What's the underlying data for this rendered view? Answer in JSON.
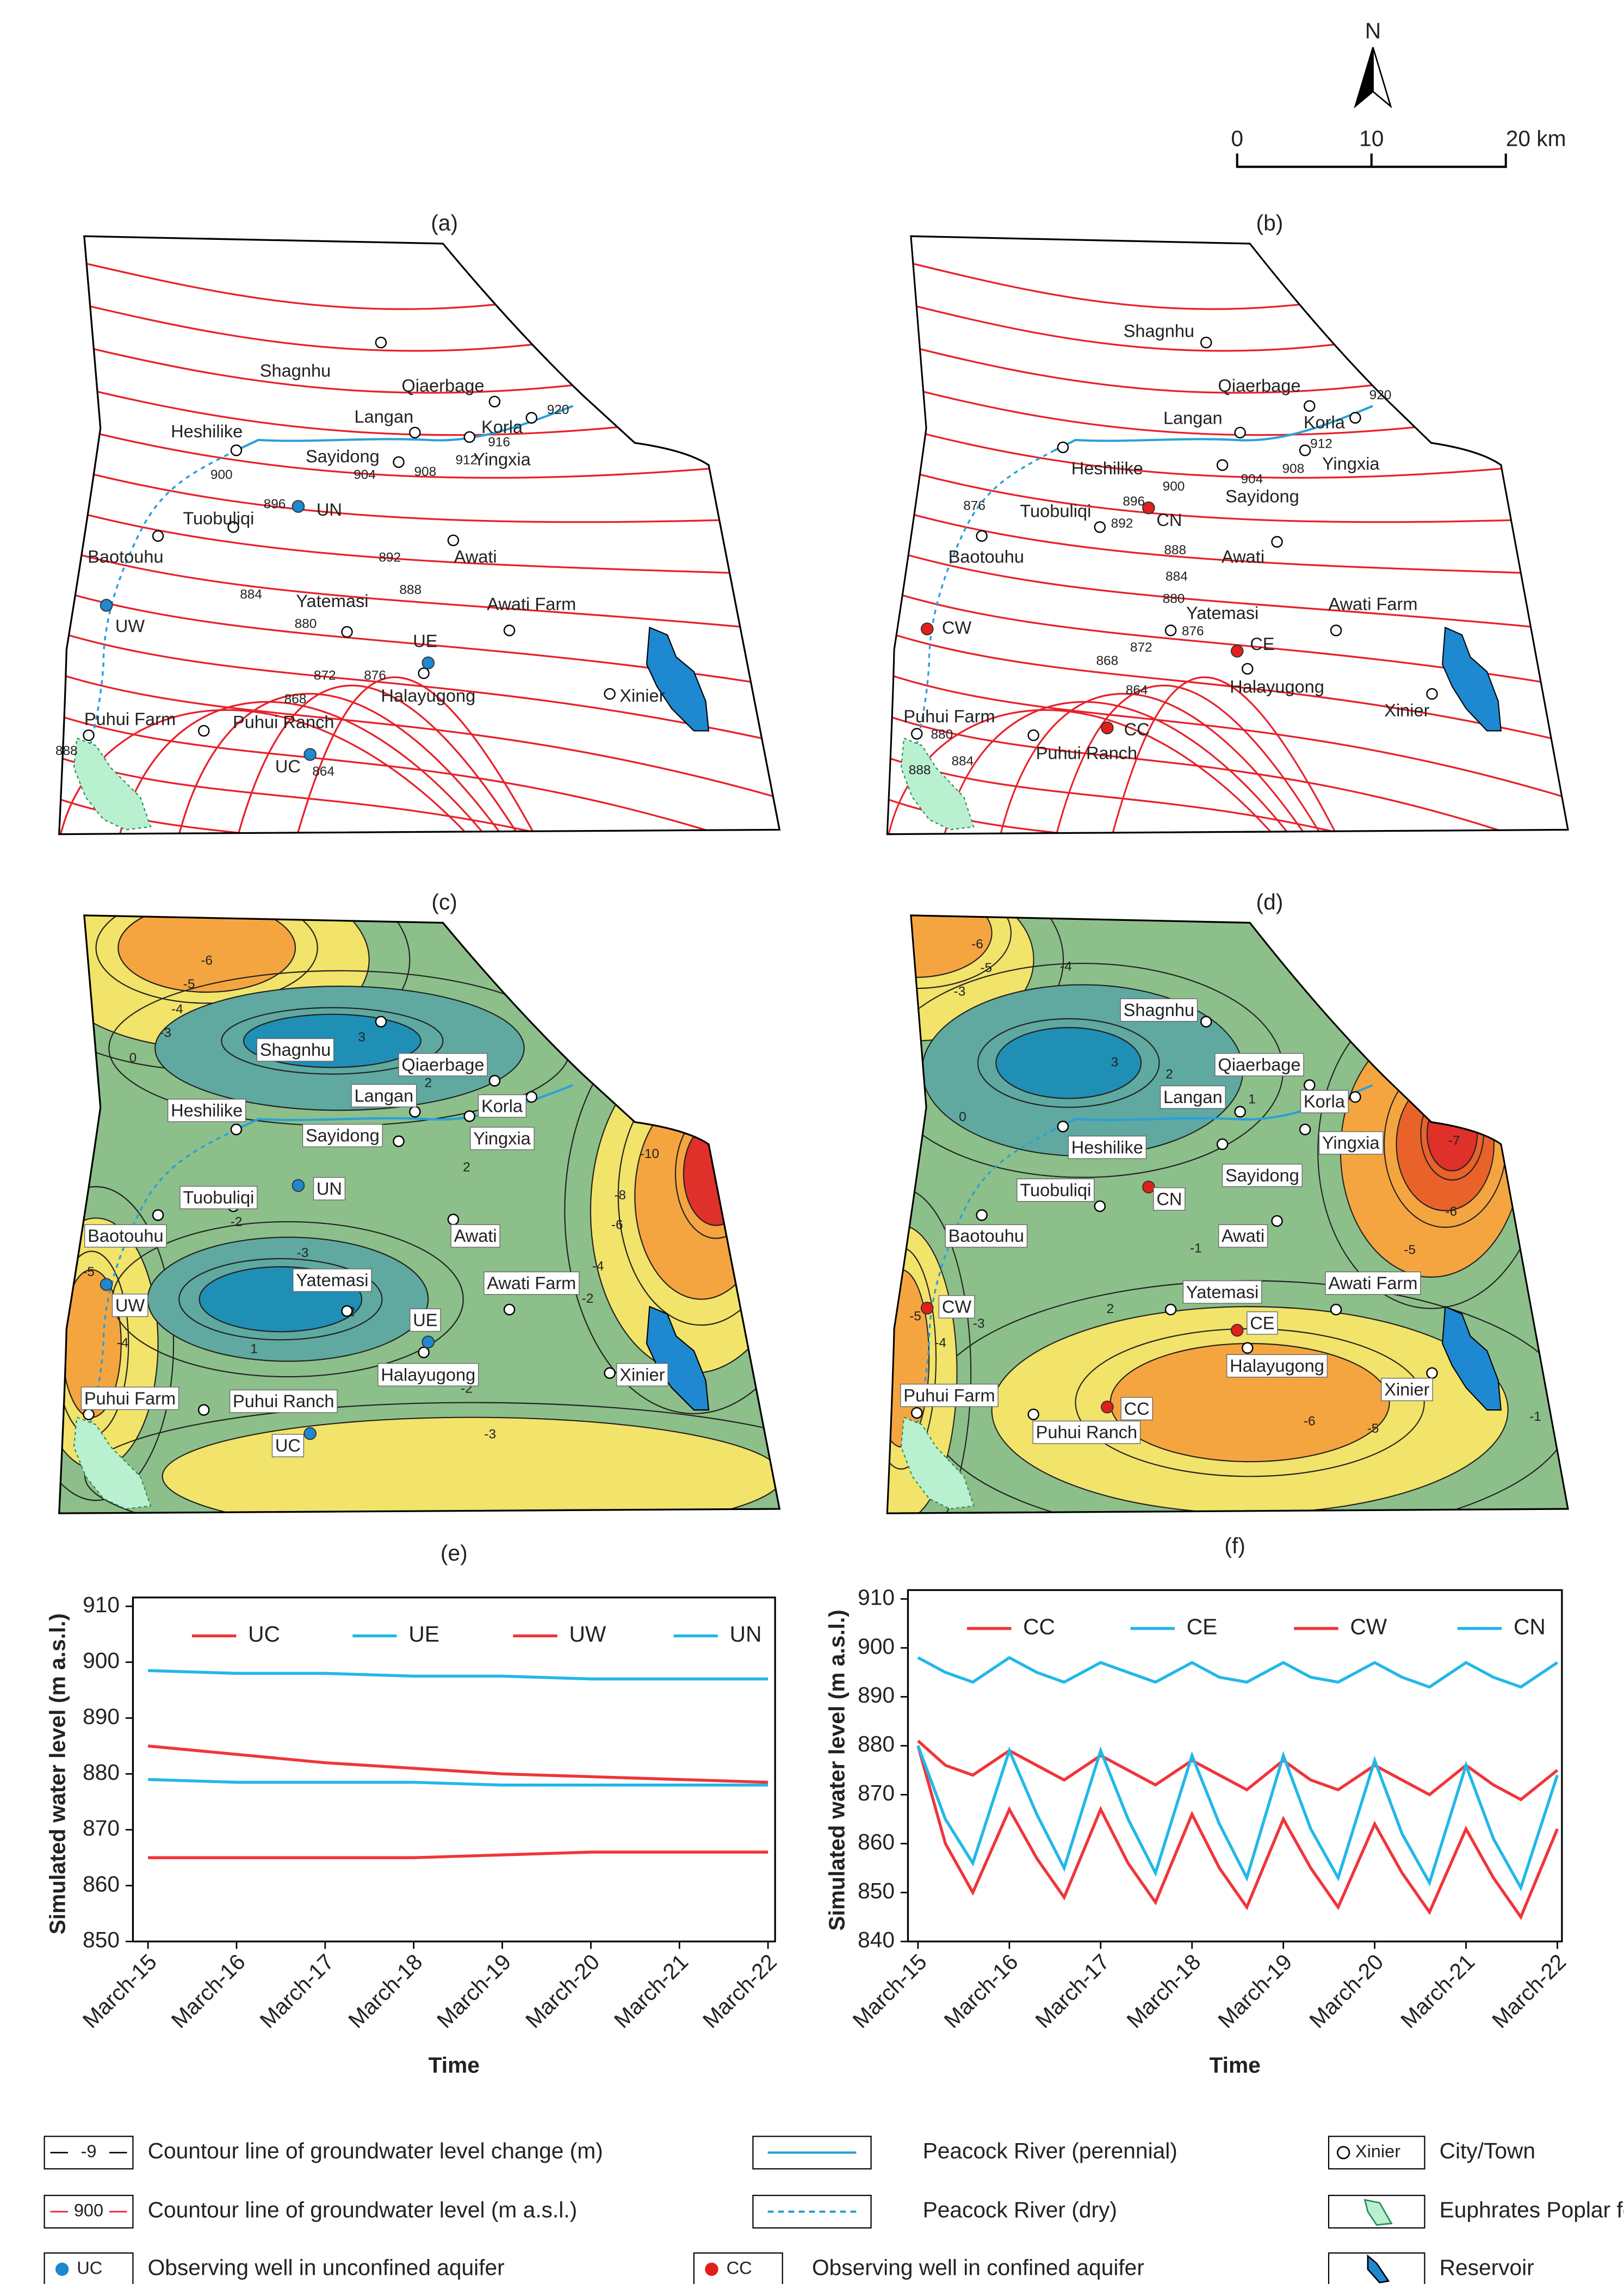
{
  "north_label": "N",
  "scale_bar": [
    "0",
    "10",
    "20 km"
  ],
  "maps": [
    {
      "title": "(a)",
      "towns": [
        "Shagnhu",
        "Qiaerbage",
        "Langan",
        "Korla",
        "Heshilike",
        "Sayidong",
        "Yingxia",
        "Tuobuliqi",
        "Baotouhu",
        "Awati",
        "Yatemasi",
        "Awati Farm",
        "Halayugong",
        "Xinier",
        "Puhui Farm",
        "Puhui Ranch"
      ],
      "wells": [
        "UN",
        "UW",
        "UE",
        "UC"
      ],
      "contour_labels": [
        "920",
        "916",
        "912",
        "908",
        "904",
        "900",
        "896",
        "892",
        "888",
        "884",
        "880",
        "876",
        "872",
        "868",
        "864",
        "888"
      ]
    },
    {
      "title": "(b)",
      "towns": [
        "Shagnhu",
        "Qiaerbage",
        "Langan",
        "Korla",
        "Heshilike",
        "Sayidong",
        "Yingxia",
        "Tuobuliqi",
        "Baotouhu",
        "Awati",
        "Yatemasi",
        "Awati Farm",
        "Halayugong",
        "Xinier",
        "Puhui Farm",
        "Puhui Ranch"
      ],
      "wells": [
        "CN",
        "CW",
        "CE",
        "CC"
      ],
      "contour_labels": [
        "920",
        "912",
        "908",
        "904",
        "900",
        "896",
        "892",
        "888",
        "884",
        "880",
        "876",
        "872",
        "868",
        "864",
        "876",
        "880",
        "884",
        "888"
      ]
    },
    {
      "title": "(c)",
      "towns": [
        "Shagnhu",
        "Qiaerbage",
        "Langan",
        "Korla",
        "Heshilike",
        "Sayidong",
        "Yingxia",
        "Tuobuliqi",
        "Baotouhu",
        "Awati",
        "Yatemasi",
        "Awati Farm",
        "Halayugong",
        "Xinier",
        "Puhui Farm",
        "Puhui Ranch"
      ],
      "wells": [
        "UN",
        "UW",
        "UE",
        "UC"
      ],
      "contour_labels": [
        "-6",
        "-5",
        "-4",
        "-3",
        "0",
        "3",
        "2",
        "1",
        "2",
        "-2",
        "-3",
        "2",
        "1",
        "-5",
        "-3",
        "-4",
        "-8",
        "-6",
        "-4",
        "-2",
        "-2",
        "-3",
        "-10"
      ]
    },
    {
      "title": "(d)",
      "towns": [
        "Shagnhu",
        "Qiaerbage",
        "Langan",
        "Korla",
        "Heshilike",
        "Sayidong",
        "Yingxia",
        "Tuobuliqi",
        "Baotouhu",
        "Awati",
        "Yatemasi",
        "Awati Farm",
        "Halayugong",
        "Xinier",
        "Puhui Farm",
        "Puhui Ranch"
      ],
      "wells": [
        "CN",
        "CW",
        "CE",
        "CC"
      ],
      "contour_labels": [
        "-6",
        "-5",
        "-4",
        "-3",
        "3",
        "2",
        "1",
        "0",
        "-1",
        "2",
        "-3",
        "-7",
        "-6",
        "-5",
        "-5",
        "-3",
        "-4",
        "-6",
        "-5",
        "-1"
      ]
    }
  ],
  "chart_data": [
    {
      "type": "line",
      "title": "(e)",
      "x_label": "Time",
      "y_label": "Simulated water level (m a.s.l.)",
      "x": [
        2015,
        2016,
        2017,
        2018,
        2019,
        2020,
        2021,
        2022
      ],
      "xlim": [
        2014.83,
        2022.08
      ],
      "xticks": [
        {
          "value": 2015,
          "label": "March-15"
        },
        {
          "value": 2016,
          "label": "March-16"
        },
        {
          "value": 2017,
          "label": "March-17"
        },
        {
          "value": 2018,
          "label": "March-18"
        },
        {
          "value": 2019,
          "label": "March-19"
        },
        {
          "value": 2020,
          "label": "March-20"
        },
        {
          "value": 2021,
          "label": "March-21"
        },
        {
          "value": 2022,
          "label": "March-22"
        }
      ],
      "ylim": [
        850,
        910
      ],
      "yticks": [
        850,
        860,
        870,
        880,
        890,
        900,
        910
      ],
      "series": [
        {
          "name": "UC",
          "color": "#f0353a",
          "values": [
            865,
            865,
            865,
            865,
            865.5,
            866,
            866,
            866
          ]
        },
        {
          "name": "UE",
          "color": "#22b8e8",
          "values": [
            898.5,
            898,
            898,
            897.5,
            897.5,
            897,
            897,
            897
          ]
        },
        {
          "name": "UW",
          "color": "#f0353a",
          "values": [
            885,
            883.5,
            882,
            881,
            880,
            879.5,
            879,
            878.5
          ]
        },
        {
          "name": "UN",
          "color": "#22b8e8",
          "values": [
            879,
            878.5,
            878.5,
            878.5,
            878,
            878,
            878,
            878
          ]
        }
      ]
    },
    {
      "type": "line",
      "title": "(f)",
      "x_label": "Time",
      "y_label": "Simulated water level (m a.s.l.)",
      "x": [
        2015,
        2015.3,
        2015.6,
        2016,
        2016.3,
        2016.6,
        2017,
        2017.3,
        2017.6,
        2018,
        2018.3,
        2018.6,
        2019,
        2019.3,
        2019.6,
        2020,
        2020.3,
        2020.6,
        2021,
        2021.3,
        2021.6,
        2022
      ],
      "xlim": [
        2014.89,
        2022.05
      ],
      "xticks": [
        {
          "value": 2015,
          "label": "March-15"
        },
        {
          "value": 2016,
          "label": "March-16"
        },
        {
          "value": 2017,
          "label": "March-17"
        },
        {
          "value": 2018,
          "label": "March-18"
        },
        {
          "value": 2019,
          "label": "March-19"
        },
        {
          "value": 2020,
          "label": "March-20"
        },
        {
          "value": 2021,
          "label": "March-21"
        },
        {
          "value": 2022,
          "label": "March-22"
        }
      ],
      "ylim": [
        840,
        910
      ],
      "yticks": [
        840,
        850,
        860,
        870,
        880,
        890,
        900,
        910
      ],
      "series": [
        {
          "name": "CC",
          "color": "#f0353a",
          "values": [
            880,
            860,
            850,
            867,
            857,
            849,
            867,
            856,
            848,
            866,
            855,
            847,
            865,
            855,
            847,
            864,
            854,
            846,
            863,
            853,
            845,
            863
          ]
        },
        {
          "name": "CE",
          "color": "#22b8e8",
          "values": [
            898,
            895,
            893,
            898,
            895,
            893,
            897,
            895,
            893,
            897,
            894,
            893,
            897,
            894,
            893,
            897,
            894,
            892,
            897,
            894,
            892,
            897
          ]
        },
        {
          "name": "CW",
          "color": "#f0353a",
          "values": [
            881,
            876,
            874,
            879,
            876,
            873,
            878,
            875,
            872,
            877,
            874,
            871,
            877,
            873,
            871,
            876,
            873,
            870,
            876,
            872,
            869,
            875
          ]
        },
        {
          "name": "CN",
          "color": "#22b8e8",
          "values": [
            880,
            865,
            856,
            879,
            866,
            855,
            879,
            865,
            854,
            878,
            864,
            853,
            878,
            863,
            853,
            877,
            862,
            852,
            876,
            861,
            851,
            874
          ]
        }
      ]
    }
  ],
  "legend": [
    {
      "sample": "-9",
      "text": "Countour line of groundwater level change (m)"
    },
    {
      "text": "Peacock River (perennial)"
    },
    {
      "sample": "Xinier",
      "text": "City/Town"
    },
    {
      "sample": "900",
      "text": "Countour line of groundwater level (m a.s.l.)"
    },
    {
      "text": "Peacock River (dry)"
    },
    {
      "text": "Euphrates Poplar forest"
    },
    {
      "sample": "UC",
      "text": "Observing well in unconfined aquifer"
    },
    {
      "sample": "CC",
      "text": "Observing well in confined aquifer"
    },
    {
      "text": "Reservoir"
    }
  ]
}
